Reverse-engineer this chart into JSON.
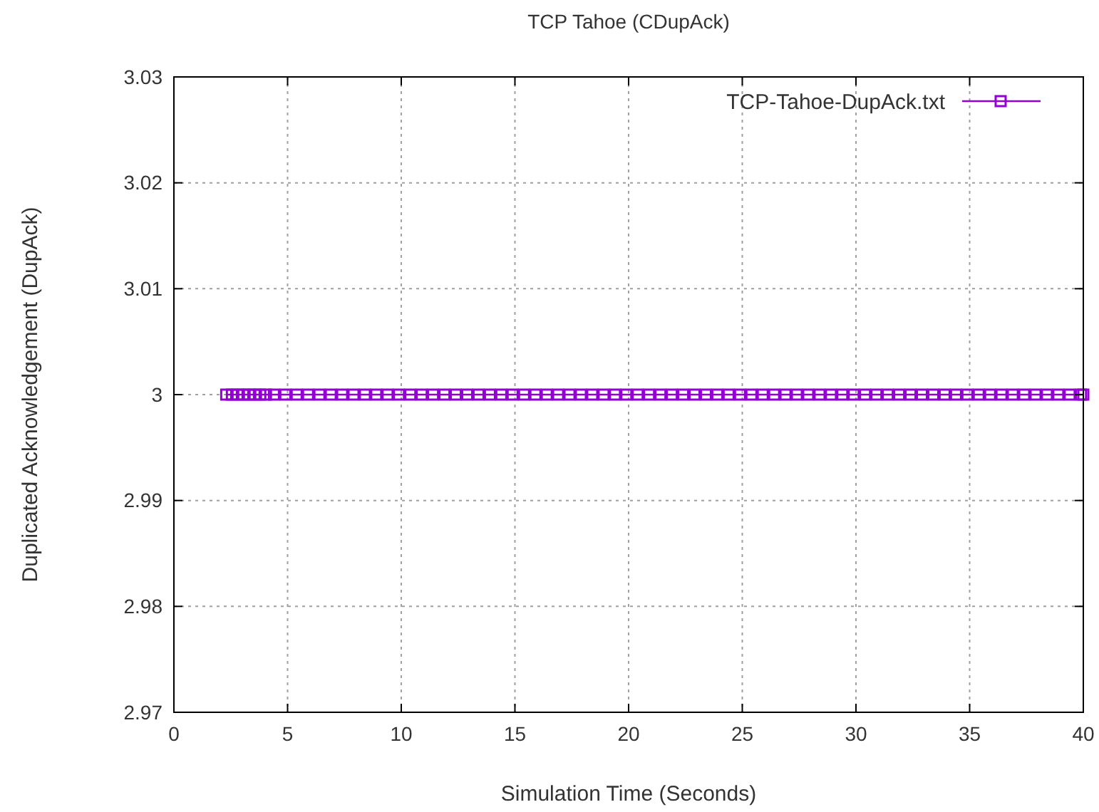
{
  "chart_data": {
    "type": "line",
    "title": "TCP Tahoe (CDupAck)",
    "xlabel": "Simulation Time (Seconds)",
    "ylabel": "Duplicated Acknowledgement (DupAck)",
    "x": [
      2.3,
      2.55,
      2.8,
      3.05,
      3.3,
      3.55,
      3.8,
      4.05,
      4.4,
      4.9,
      5.4,
      5.9,
      6.4,
      6.9,
      7.4,
      7.9,
      8.4,
      8.9,
      9.4,
      9.9,
      10.4,
      10.9,
      11.4,
      11.9,
      12.4,
      12.9,
      13.4,
      13.9,
      14.4,
      14.9,
      15.4,
      15.9,
      16.4,
      16.9,
      17.4,
      17.9,
      18.4,
      18.9,
      19.4,
      19.9,
      20.4,
      20.9,
      21.4,
      21.9,
      22.4,
      22.9,
      23.4,
      23.9,
      24.4,
      24.9,
      25.4,
      25.9,
      26.4,
      26.9,
      27.4,
      27.9,
      28.4,
      28.9,
      29.4,
      29.9,
      30.4,
      30.9,
      31.4,
      31.9,
      32.4,
      32.9,
      33.4,
      33.9,
      34.4,
      34.9,
      35.4,
      35.9,
      36.4,
      36.9,
      37.4,
      37.9,
      38.4,
      38.9,
      39.4,
      39.9,
      40
    ],
    "series": [
      {
        "name": "TCP-Tahoe-DupAck.txt",
        "color": "#9400d3",
        "values": [
          3,
          3,
          3,
          3,
          3,
          3,
          3,
          3,
          3,
          3,
          3,
          3,
          3,
          3,
          3,
          3,
          3,
          3,
          3,
          3,
          3,
          3,
          3,
          3,
          3,
          3,
          3,
          3,
          3,
          3,
          3,
          3,
          3,
          3,
          3,
          3,
          3,
          3,
          3,
          3,
          3,
          3,
          3,
          3,
          3,
          3,
          3,
          3,
          3,
          3,
          3,
          3,
          3,
          3,
          3,
          3,
          3,
          3,
          3,
          3,
          3,
          3,
          3,
          3,
          3,
          3,
          3,
          3,
          3,
          3,
          3,
          3,
          3,
          3,
          3,
          3,
          3,
          3,
          3,
          3,
          3
        ]
      }
    ],
    "xlim": [
      0,
      40
    ],
    "xticks": [
      0,
      5,
      10,
      15,
      20,
      25,
      30,
      35,
      40
    ],
    "ylim": [
      2.97,
      3.03
    ],
    "yticks": [
      2.97,
      2.98,
      2.99,
      3,
      3.01,
      3.02,
      3.03
    ],
    "grid": true,
    "legend": "top right",
    "marker": "square",
    "line_style": "solid"
  }
}
